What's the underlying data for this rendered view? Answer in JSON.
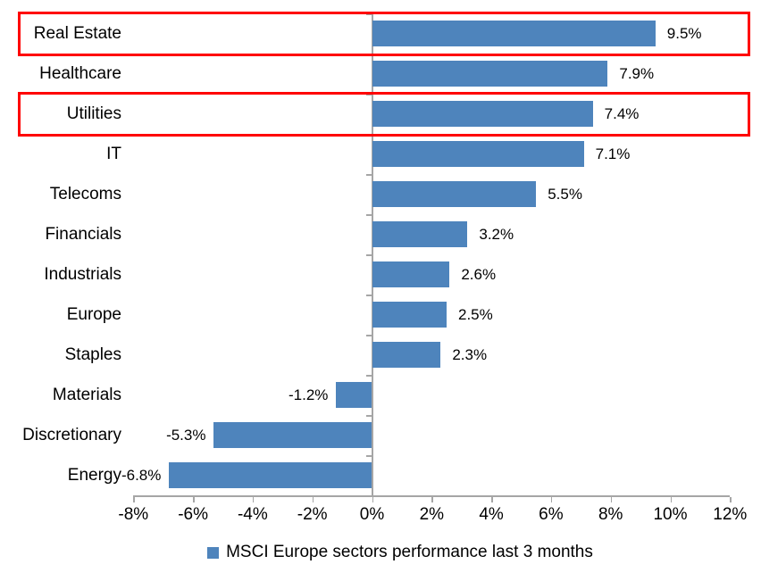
{
  "chart_data": {
    "type": "bar",
    "orientation": "horizontal",
    "title": "",
    "categories": [
      "Real Estate",
      "Healthcare",
      "Utilities",
      "IT",
      "Telecoms",
      "Financials",
      "Industrials",
      "Europe",
      "Staples",
      "Materials",
      "Discretionary",
      "Energy"
    ],
    "values": [
      9.5,
      7.9,
      7.4,
      7.1,
      5.5,
      3.2,
      2.6,
      2.5,
      2.3,
      -1.2,
      -5.3,
      -6.8
    ],
    "value_labels": [
      "9.5%",
      "7.9%",
      "7.4%",
      "7.1%",
      "5.5%",
      "3.2%",
      "2.6%",
      "2.5%",
      "2.3%",
      "-1.2%",
      "-5.3%",
      "-6.8%"
    ],
    "x_axis": {
      "min": -8,
      "max": 12,
      "ticks": [
        -8,
        -6,
        -4,
        -2,
        0,
        2,
        4,
        6,
        8,
        10,
        12
      ],
      "tick_labels": [
        "-8%",
        "-6%",
        "-4%",
        "-2%",
        "0%",
        "2%",
        "4%",
        "6%",
        "8%",
        "10%",
        "12%"
      ]
    },
    "grid": false,
    "legend": {
      "position": "bottom",
      "label": "MSCI Europe sectors performance last 3 months"
    },
    "highlighted_categories": [
      "Real Estate",
      "Utilities"
    ],
    "colors": {
      "bar": "#4e84bc",
      "axis": "#a6a6a6",
      "highlight": "#ff0000",
      "text": "#000000"
    }
  }
}
